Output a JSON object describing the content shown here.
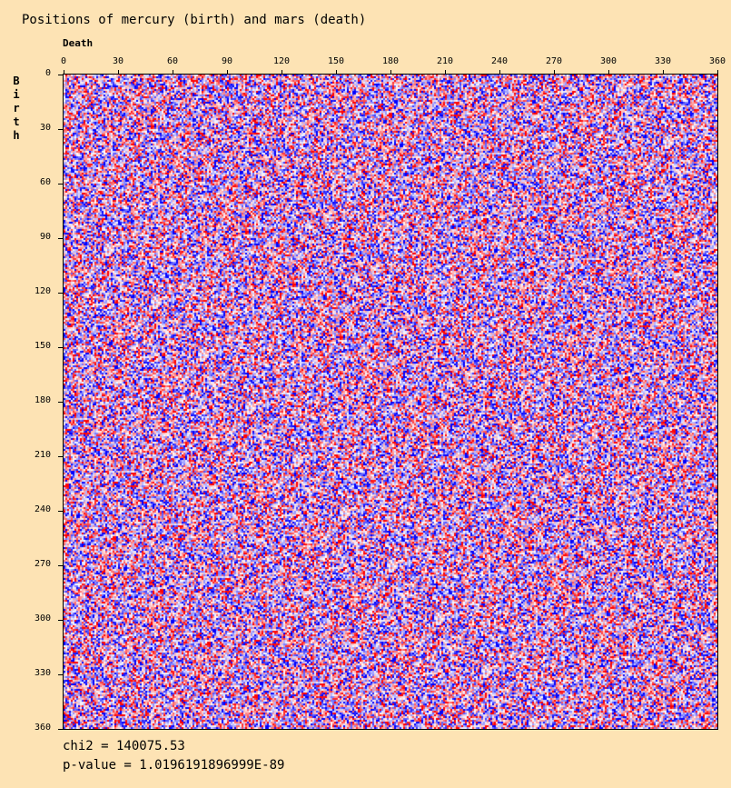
{
  "chart_data": {
    "type": "heatmap",
    "title": "Positions of mercury (birth) and mars (death)",
    "xlabel": "Death",
    "ylabel": "Birth",
    "xlim": [
      0,
      360
    ],
    "ylim": [
      0,
      360
    ],
    "x_ticks": [
      "0",
      "30",
      "60",
      "90",
      "120",
      "150",
      "180",
      "210",
      "240",
      "270",
      "300",
      "330",
      "360"
    ],
    "y_ticks": [
      "0",
      "30",
      "60",
      "90",
      "120",
      "150",
      "180",
      "210",
      "240",
      "270",
      "300",
      "330",
      "360"
    ],
    "cell_size_degrees": 1,
    "color_scale": {
      "low": "#0000ff",
      "mid": "#ffffff",
      "high": "#ff0000"
    },
    "grid": false,
    "legend": "none",
    "stats": {
      "chi2": "chi2 = 140075.53",
      "p_value": "p-value = 1.0196191896999E-89"
    }
  },
  "colors": {
    "background": "#fde3b4"
  }
}
